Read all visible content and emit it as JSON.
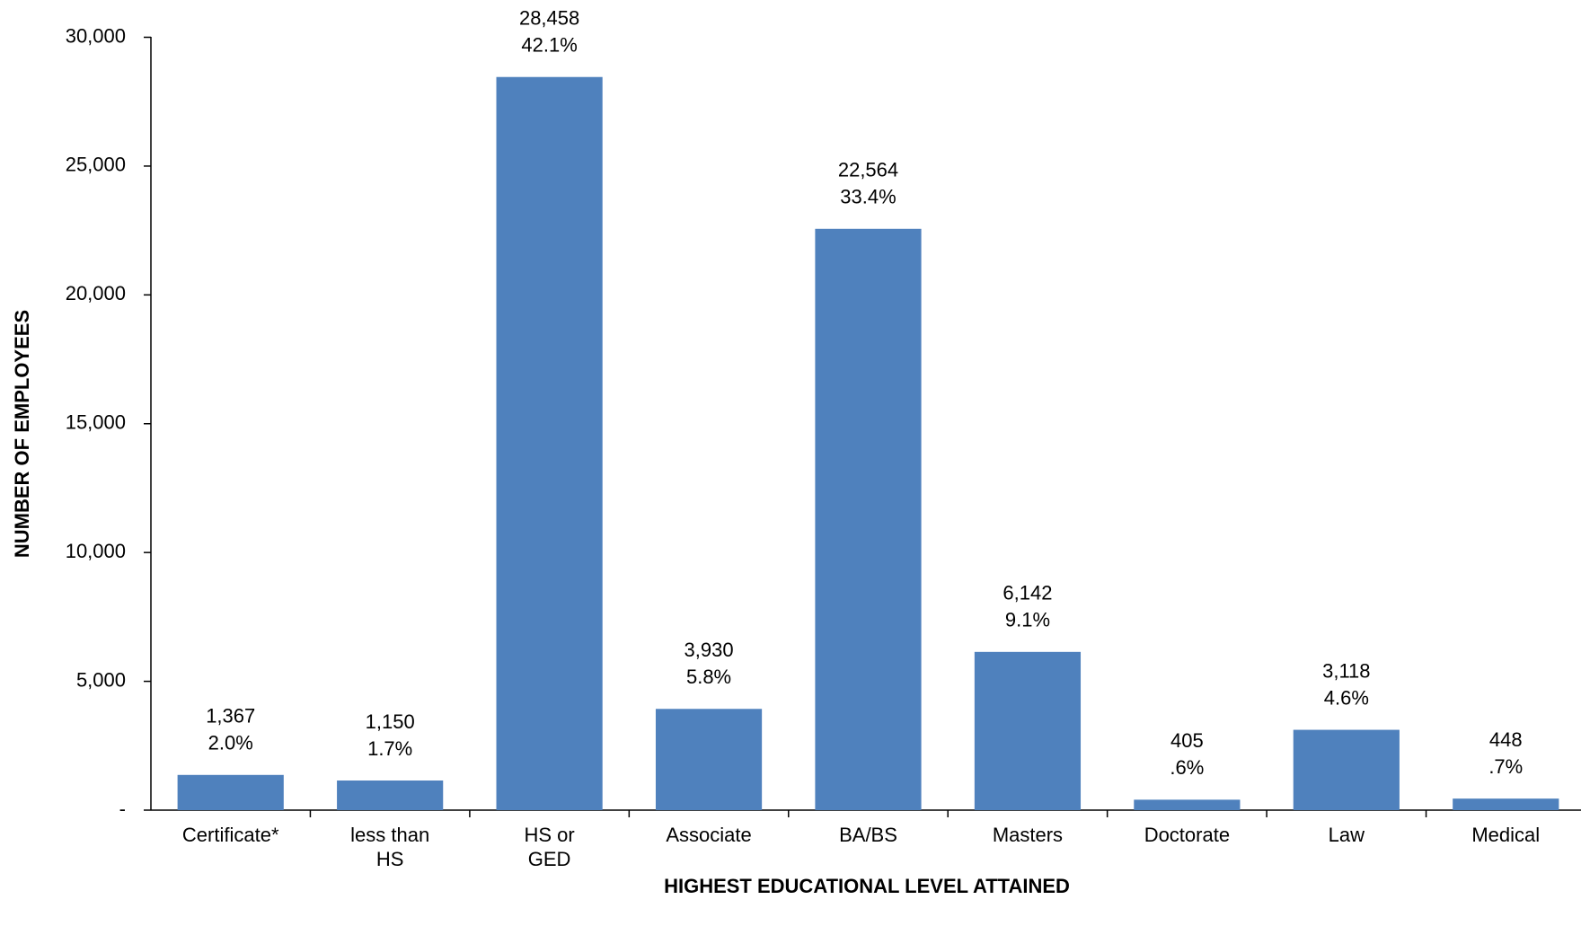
{
  "chart_data": {
    "type": "bar",
    "x_label": "HIGHEST EDUCATIONAL LEVEL ATTAINED",
    "y_label": "NUMBER OF EMPLOYEES",
    "categories": [
      [
        "Certificate*"
      ],
      [
        "less than",
        "HS"
      ],
      [
        "HS or",
        "GED"
      ],
      [
        "Associate"
      ],
      [
        "BA/BS"
      ],
      [
        "Masters"
      ],
      [
        "Doctorate"
      ],
      [
        "Law"
      ],
      [
        "Medical"
      ]
    ],
    "values": [
      1367,
      1150,
      28458,
      3930,
      22564,
      6142,
      405,
      3118,
      448
    ],
    "value_labels": [
      "1,367",
      "1,150",
      "28,458",
      "3,930",
      "22,564",
      "6,142",
      "405",
      "3,118",
      "448"
    ],
    "share_labels": [
      "2.0%",
      "1.7%",
      "42.1%",
      "5.8%",
      "33.4%",
      "9.1%",
      ".6%",
      "4.6%",
      ".7%"
    ],
    "color": "#4f81bd",
    "ylim": [
      0,
      30000
    ],
    "yticks": [
      {
        "value": 0,
        "label": "-"
      },
      {
        "value": 5000,
        "label": "5,000"
      },
      {
        "value": 10000,
        "label": "10,000"
      },
      {
        "value": 15000,
        "label": "15,000"
      },
      {
        "value": 20000,
        "label": "20,000"
      },
      {
        "value": 25000,
        "label": "25,000"
      },
      {
        "value": 30000,
        "label": "30,000"
      }
    ],
    "grid": false
  }
}
